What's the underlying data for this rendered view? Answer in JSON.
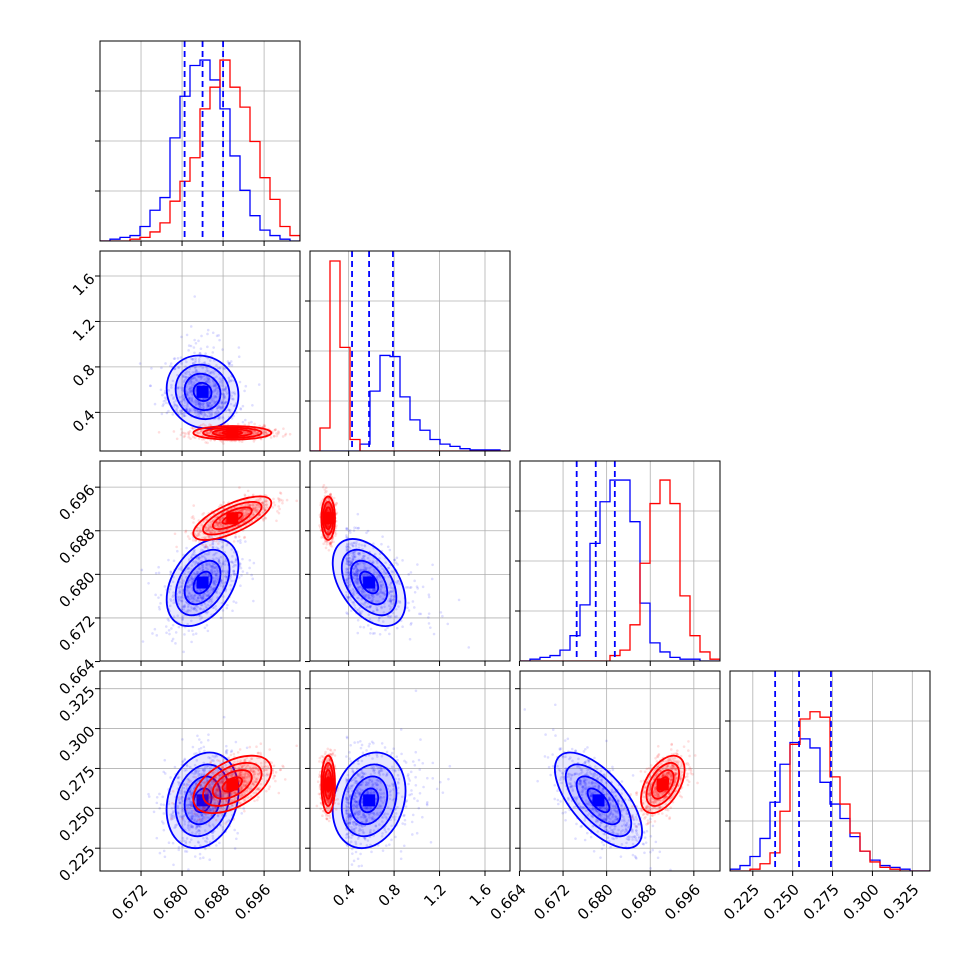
{
  "chart_data": {
    "type": "corner",
    "parameters": [
      {
        "ticks": [
          "0.672",
          "0.680",
          "0.688",
          "0.696"
        ],
        "range": [
          0.664,
          0.703
        ]
      },
      {
        "ticks": [
          "0.4",
          "0.8",
          "1.2",
          "1.6"
        ],
        "range": [
          0.06,
          1.82
        ]
      },
      {
        "ticks": [
          "0.664",
          "0.672",
          "0.680",
          "0.688",
          "0.696"
        ],
        "range": [
          0.6641,
          0.7008
        ]
      },
      {
        "ticks": [
          "0.225",
          "0.250",
          "0.275",
          "0.300",
          "0.325"
        ],
        "range": [
          0.2107,
          0.3361
        ]
      }
    ],
    "series": [
      {
        "color": "#0000ff",
        "mean": [
          0.684,
          0.58,
          0.6785,
          0.255
        ],
        "sd": [
          0.0035,
          0.16,
          0.004,
          0.015
        ],
        "corr": {
          "1,0": -0.1,
          "2,0": 0.4,
          "2,1": -0.45,
          "3,0": 0.2,
          "3,1": 0.2,
          "3,2": -0.65
        },
        "quantiles": [
          [
            0.6805,
            0.684,
            0.688
          ],
          [
            0.43,
            0.58,
            0.79
          ],
          [
            0.6745,
            0.678,
            0.6815
          ],
          [
            0.239,
            0.254,
            0.274
          ]
        ],
        "hist_1d": [
          [
            0,
            1,
            2,
            3,
            8,
            17,
            24,
            57,
            80,
            97,
            100,
            89,
            73,
            47,
            28,
            14,
            6,
            3,
            1,
            0
          ],
          [
            0,
            0,
            0,
            0,
            0,
            6,
            52,
            83,
            82,
            47,
            27,
            18,
            10,
            6,
            4,
            2,
            1,
            1,
            1,
            0
          ],
          [
            0,
            1,
            2,
            3,
            6,
            14,
            31,
            65,
            88,
            100,
            100,
            77,
            32,
            10,
            5,
            2,
            1,
            1,
            0,
            0
          ],
          [
            1,
            3,
            8,
            18,
            38,
            59,
            71,
            73,
            68,
            49,
            37,
            29,
            19,
            11,
            6,
            3,
            2,
            1,
            0,
            0
          ]
        ]
      },
      {
        "color": "#ff0000",
        "mean": [
          0.6898,
          0.22,
          0.6903,
          0.265
        ],
        "sd": [
          0.0038,
          0.03,
          0.002,
          0.009
        ],
        "corr": {
          "1,0": 0.0,
          "2,0": 0.7,
          "2,1": 0.0,
          "3,0": 0.5,
          "3,1": 0.0,
          "3,2": 0.5
        },
        "quantiles": [],
        "hist_1d": [
          [
            0,
            0,
            0,
            1,
            2,
            5,
            10,
            22,
            33,
            46,
            73,
            85,
            100,
            85,
            74,
            55,
            35,
            23,
            8,
            3
          ],
          [
            0,
            20,
            165,
            90,
            10,
            0,
            0,
            0,
            0,
            0,
            0,
            0,
            0,
            0,
            0,
            0,
            0,
            0,
            0,
            0
          ],
          [
            0,
            0,
            0,
            0,
            0,
            0,
            0,
            0,
            0,
            3,
            6,
            20,
            54,
            87,
            100,
            87,
            36,
            14,
            5,
            1
          ],
          [
            0,
            0,
            1,
            4,
            10,
            33,
            70,
            84,
            88,
            85,
            52,
            37,
            21,
            11,
            5,
            2,
            1,
            0,
            0,
            0
          ]
        ]
      }
    ],
    "contour_levels": [
      0.5,
      1.0,
      1.5,
      2.0
    ],
    "grid": true,
    "axes_labels": []
  }
}
